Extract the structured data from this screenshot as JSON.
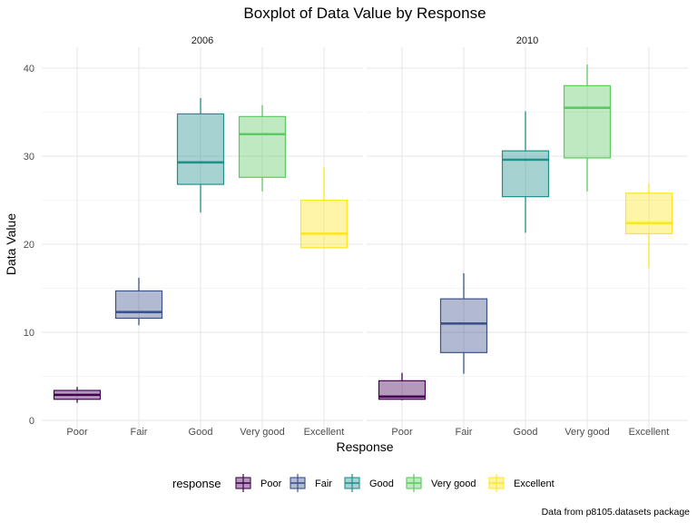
{
  "chart_data": {
    "type": "boxplot",
    "title": "Boxplot of Data Value by Response",
    "xlabel": "Response",
    "ylabel": "Data Value",
    "ylim": [
      0,
      40
    ],
    "y_ticks": [
      0,
      10,
      20,
      30,
      40
    ],
    "categories": [
      "Poor",
      "Fair",
      "Good",
      "Very good",
      "Excellent"
    ],
    "facets": [
      {
        "label": "2006",
        "boxes": [
          {
            "category": "Poor",
            "min": 2.0,
            "q1": 2.4,
            "median": 2.9,
            "q3": 3.4,
            "max": 3.8
          },
          {
            "category": "Fair",
            "min": 10.8,
            "q1": 11.6,
            "median": 12.3,
            "q3": 14.7,
            "max": 16.2
          },
          {
            "category": "Good",
            "min": 23.6,
            "q1": 26.8,
            "median": 29.3,
            "q3": 34.8,
            "max": 36.6
          },
          {
            "category": "Very good",
            "min": 26.0,
            "q1": 27.6,
            "median": 32.5,
            "q3": 34.5,
            "max": 35.8
          },
          {
            "category": "Excellent",
            "min": 19.5,
            "q1": 19.6,
            "median": 21.2,
            "q3": 25.0,
            "max": 28.8
          }
        ]
      },
      {
        "label": "2010",
        "boxes": [
          {
            "category": "Poor",
            "min": 2.3,
            "q1": 2.4,
            "median": 2.7,
            "q3": 4.5,
            "max": 5.4
          },
          {
            "category": "Fair",
            "min": 5.3,
            "q1": 7.7,
            "median": 11.0,
            "q3": 13.8,
            "max": 16.7
          },
          {
            "category": "Good",
            "min": 21.3,
            "q1": 25.4,
            "median": 29.6,
            "q3": 30.6,
            "max": 35.1
          },
          {
            "category": "Very good",
            "min": 26.0,
            "q1": 29.8,
            "median": 35.5,
            "q3": 38.0,
            "max": 40.4
          },
          {
            "category": "Excellent",
            "min": 17.3,
            "q1": 21.2,
            "median": 22.4,
            "q3": 25.8,
            "max": 26.9
          }
        ]
      }
    ],
    "legend": {
      "title": "response",
      "position": "bottom",
      "items": [
        "Poor",
        "Fair",
        "Good",
        "Very good",
        "Excellent"
      ]
    },
    "colors": {
      "Poor": "#440154",
      "Fair": "#3b528b",
      "Good": "#21908c",
      "Very good": "#5ec962",
      "Excellent": "#fde725"
    },
    "grid": true,
    "caption": "Data from p8105.datasets package"
  }
}
